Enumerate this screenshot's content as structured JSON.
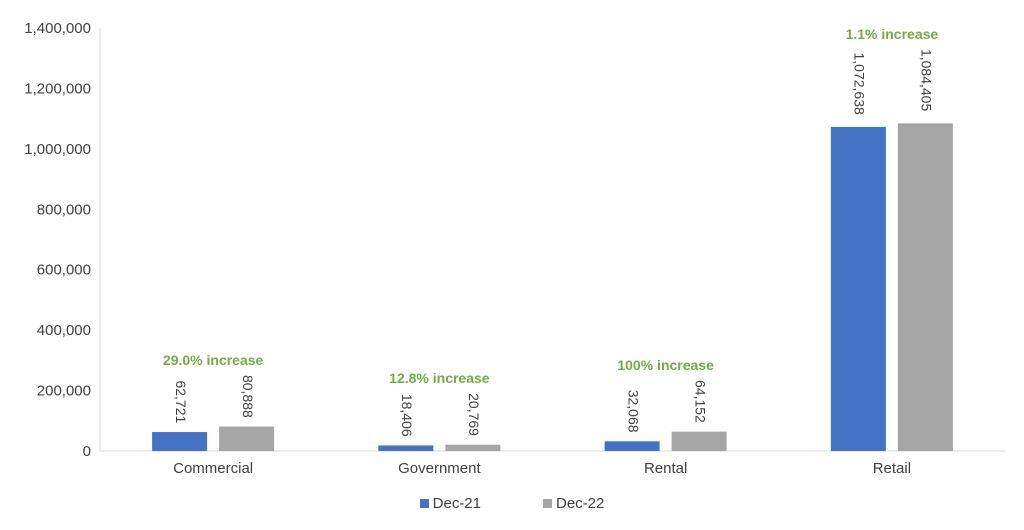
{
  "chart_data": {
    "type": "bar",
    "categories": [
      "Commercial",
      "Government",
      "Rental",
      "Retail"
    ],
    "series": [
      {
        "name": "Dec-21",
        "color": "#4472C4",
        "values": [
          62721,
          18406,
          32068,
          1072638
        ],
        "labels": [
          "62,721",
          "18,406",
          "32,068",
          "1,072,638"
        ]
      },
      {
        "name": "Dec-22",
        "color": "#A5A5A5",
        "values": [
          80888,
          20769,
          64152,
          1084405
        ],
        "labels": [
          "80,888",
          "20,769",
          "64,152",
          "1,084,405"
        ]
      }
    ],
    "annotations": [
      "29.0% increase",
      "12.8% increase",
      "100% increase",
      "1.1% increase"
    ],
    "annotation_color": "#70AD47",
    "ylim": [
      0,
      1400000
    ],
    "yticks": [
      0,
      200000,
      400000,
      600000,
      800000,
      1000000,
      1200000,
      1400000
    ],
    "ytick_labels": [
      "0",
      "200,000",
      "400,000",
      "600,000",
      "800,000",
      "1,000,000",
      "1,200,000",
      "1,400,000"
    ],
    "legend_position": "bottom",
    "grid": false,
    "title": "",
    "xlabel": "",
    "ylabel": ""
  }
}
